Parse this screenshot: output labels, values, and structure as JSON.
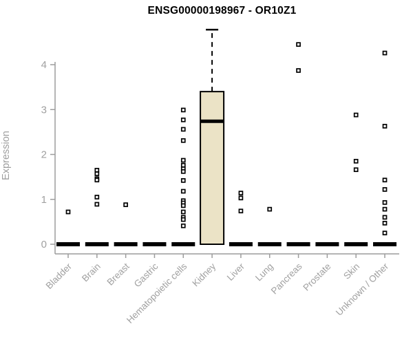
{
  "title": "ENSG00000198967 - OR10Z1",
  "chart_data": {
    "type": "boxplot",
    "title": "ENSG00000198967 - OR10Z1",
    "xlabel": "",
    "ylabel": "Expression",
    "ylim": [
      0,
      4.9
    ],
    "yticks": [
      0,
      1,
      2,
      3,
      4
    ],
    "grid": false,
    "legend": false,
    "categories": [
      "Bladder",
      "Brain",
      "Breast",
      "Gastric",
      "Hematopoietic cells",
      "Kidney",
      "Liver",
      "Lung",
      "Pancreas",
      "Prostate",
      "Skin",
      "Unknown / Other"
    ],
    "boxes": [
      {
        "label": "Bladder",
        "q1": 0,
        "median": 0,
        "q3": 0,
        "whisker_low": 0,
        "whisker_high": 0,
        "outliers": [
          0.72
        ]
      },
      {
        "label": "Brain",
        "q1": 0,
        "median": 0,
        "q3": 0,
        "whisker_low": 0,
        "whisker_high": 0,
        "outliers": [
          1.65,
          1.57,
          1.46,
          1.43,
          1.05,
          0.89
        ]
      },
      {
        "label": "Breast",
        "q1": 0,
        "median": 0,
        "q3": 0,
        "whisker_low": 0,
        "whisker_high": 0,
        "outliers": [
          0.88
        ]
      },
      {
        "label": "Gastric",
        "q1": 0,
        "median": 0,
        "q3": 0,
        "whisker_low": 0,
        "whisker_high": 0,
        "outliers": []
      },
      {
        "label": "Hematopoietic cells",
        "q1": 0,
        "median": 0,
        "q3": 0,
        "whisker_low": 0,
        "whisker_high": 0,
        "outliers": [
          2.99,
          2.77,
          2.56,
          2.31,
          1.87,
          1.76,
          1.68,
          1.62,
          1.42,
          1.18,
          0.97,
          0.92,
          0.86,
          0.72,
          0.6,
          0.55,
          0.41
        ]
      },
      {
        "label": "Kidney",
        "q1": 0,
        "median": 2.74,
        "q3": 3.4,
        "whisker_low": 0,
        "whisker_high": 4.78,
        "outliers": []
      },
      {
        "label": "Liver",
        "q1": 0,
        "median": 0,
        "q3": 0,
        "whisker_low": 0,
        "whisker_high": 0,
        "outliers": [
          1.14,
          1.03,
          0.74
        ]
      },
      {
        "label": "Lung",
        "q1": 0,
        "median": 0,
        "q3": 0,
        "whisker_low": 0,
        "whisker_high": 0,
        "outliers": [
          0.78
        ]
      },
      {
        "label": "Pancreas",
        "q1": 0,
        "median": 0,
        "q3": 0,
        "whisker_low": 0,
        "whisker_high": 0,
        "outliers": [
          4.45,
          3.87
        ]
      },
      {
        "label": "Prostate",
        "q1": 0,
        "median": 0,
        "q3": 0,
        "whisker_low": 0,
        "whisker_high": 0,
        "outliers": []
      },
      {
        "label": "Skin",
        "q1": 0,
        "median": 0,
        "q3": 0,
        "whisker_low": 0,
        "whisker_high": 0,
        "outliers": [
          2.88,
          1.85,
          1.66
        ]
      },
      {
        "label": "Unknown / Other",
        "q1": 0,
        "median": 0,
        "q3": 0,
        "whisker_low": 0,
        "whisker_high": 0,
        "outliers": [
          4.26,
          2.63,
          1.43,
          1.22,
          0.93,
          0.78,
          0.6,
          0.47,
          0.25
        ]
      }
    ],
    "colors": {
      "box_fill": "#EBE3C6",
      "box_stroke": "#000000",
      "median": "#000000",
      "whisker": "#000000",
      "outlier": "#000000",
      "axis": "#9C9C9C",
      "tick_label": "#A0A0A0",
      "title": "#000000",
      "background": "#FFFFFF"
    }
  }
}
